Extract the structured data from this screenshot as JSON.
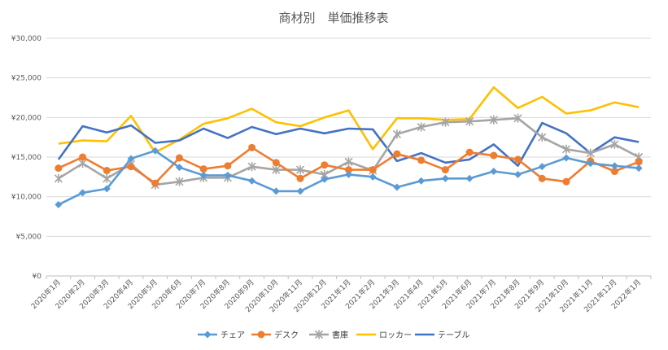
{
  "chart_data": {
    "type": "line",
    "title": "商材別　単価推移表",
    "xlabel": "",
    "ylabel": "",
    "ylim": [
      0,
      30000
    ],
    "yticks": [
      0,
      5000,
      10000,
      15000,
      20000,
      25000,
      30000
    ],
    "ytick_labels": [
      "¥0",
      "¥5,000",
      "¥10,000",
      "¥15,000",
      "¥20,000",
      "¥25,000",
      "¥30,000"
    ],
    "grid": true,
    "legend_position": "bottom",
    "categories": [
      "2020年1月",
      "2020年2月",
      "2020年3月",
      "2020年4月",
      "2020年5月",
      "2020年6月",
      "2020年7月",
      "2020年8月",
      "2020年9月",
      "2020年10月",
      "2020年11月",
      "2020年12月",
      "2021年1月",
      "2021年2月",
      "2021年3月",
      "2021年4月",
      "2021年5月",
      "2021年6月",
      "2021年7月",
      "2021年8月",
      "2021年9月",
      "2021年10月",
      "2021年11月",
      "2021年12月",
      "2022年1月"
    ],
    "series": [
      {
        "name": "チェア",
        "color": "#5b9bd5",
        "marker": "diamond",
        "values": [
          9000,
          10500,
          11000,
          14800,
          15800,
          13700,
          12700,
          12700,
          12000,
          10700,
          10700,
          12200,
          12800,
          12500,
          11200,
          12000,
          12300,
          12300,
          13200,
          12800,
          13800,
          14900,
          14200,
          13900,
          13600
        ]
      },
      {
        "name": "デスク",
        "color": "#ed7d31",
        "marker": "circle",
        "values": [
          13600,
          15000,
          13300,
          13800,
          11700,
          14900,
          13500,
          13900,
          16200,
          14300,
          12300,
          14000,
          13400,
          13400,
          15400,
          14600,
          13400,
          15600,
          15200,
          14700,
          12300,
          11900,
          14500,
          13200,
          14400
        ]
      },
      {
        "name": "書庫",
        "color": "#a5a5a5",
        "marker": "star",
        "values": [
          12300,
          14200,
          12300,
          14100,
          11500,
          11900,
          12400,
          12400,
          13800,
          13400,
          13400,
          12800,
          14400,
          13300,
          17900,
          18800,
          19400,
          19500,
          19700,
          19900,
          17500,
          16000,
          15500,
          16600,
          15000
        ]
      },
      {
        "name": "ロッカー",
        "color": "#ffc000",
        "marker": "none",
        "values": [
          16700,
          17100,
          17000,
          20200,
          15600,
          17200,
          19200,
          19900,
          21100,
          19400,
          18900,
          20000,
          20900,
          16000,
          19900,
          19900,
          19700,
          19800,
          23800,
          21200,
          22600,
          20500,
          20900,
          21900,
          21300
        ]
      },
      {
        "name": "テーブル",
        "color": "#4472c4",
        "marker": "none",
        "values": [
          14700,
          18900,
          18100,
          19000,
          16800,
          17100,
          18600,
          17400,
          18800,
          17900,
          18600,
          18000,
          18600,
          18500,
          14500,
          15500,
          14300,
          14700,
          16600,
          13900,
          19300,
          18000,
          15500,
          17500,
          16900
        ]
      }
    ]
  }
}
